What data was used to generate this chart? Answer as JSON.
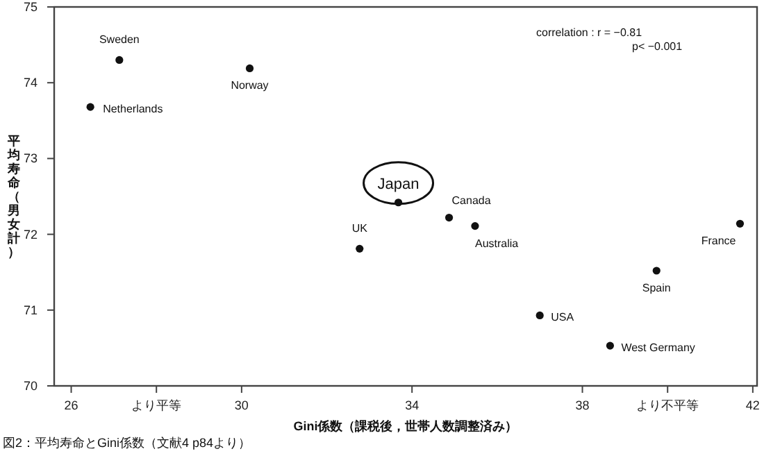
{
  "chart_data": {
    "type": "scatter",
    "color": "#111111",
    "marker": "circle",
    "x": [
      27.13,
      26.45,
      30.19,
      32.77,
      33.68,
      34.87,
      35.48,
      41.7,
      39.74,
      37.0,
      38.65
    ],
    "values": [
      74.3,
      73.68,
      74.19,
      71.81,
      72.42,
      72.22,
      72.11,
      72.14,
      71.52,
      70.93,
      70.53
    ],
    "xlim": [
      25.6,
      42.1
    ],
    "ylim": [
      70,
      75
    ],
    "xticks": [
      26,
      {
        "value": 28,
        "label": "より平等"
      },
      30,
      34,
      38,
      {
        "value": 40,
        "label": "より不平等"
      },
      42
    ],
    "yticks": [
      70,
      71,
      72,
      73,
      74,
      75
    ],
    "xlabel": "Gini係数（課税後，世帯人数調整済み）",
    "ylabel": "平均寿命（男女計）",
    "annotations": [
      {
        "text": "Sweden",
        "x": 27.13,
        "y": 74.3
      },
      {
        "text": "Netherlands",
        "x": 26.45,
        "y": 73.68
      },
      {
        "text": "Norway",
        "x": 30.19,
        "y": 74.19
      },
      {
        "text": "UK",
        "x": 32.77,
        "y": 71.81
      },
      {
        "text": "Japan",
        "x": 33.68,
        "y": 72.42
      },
      {
        "text": "Canada",
        "x": 34.87,
        "y": 72.22
      },
      {
        "text": "Australia",
        "x": 35.48,
        "y": 72.11
      },
      {
        "text": "France",
        "x": 41.7,
        "y": 72.14
      },
      {
        "text": "Spain",
        "x": 39.74,
        "y": 71.52
      },
      {
        "text": "USA",
        "x": 37.0,
        "y": 70.93
      },
      {
        "text": "West Germany",
        "x": 38.65,
        "y": 70.53
      },
      "correlation : r = −0.81",
      "p< −0.001",
      "図2：平均寿命とGini係数（文献4 p84より）"
    ]
  }
}
